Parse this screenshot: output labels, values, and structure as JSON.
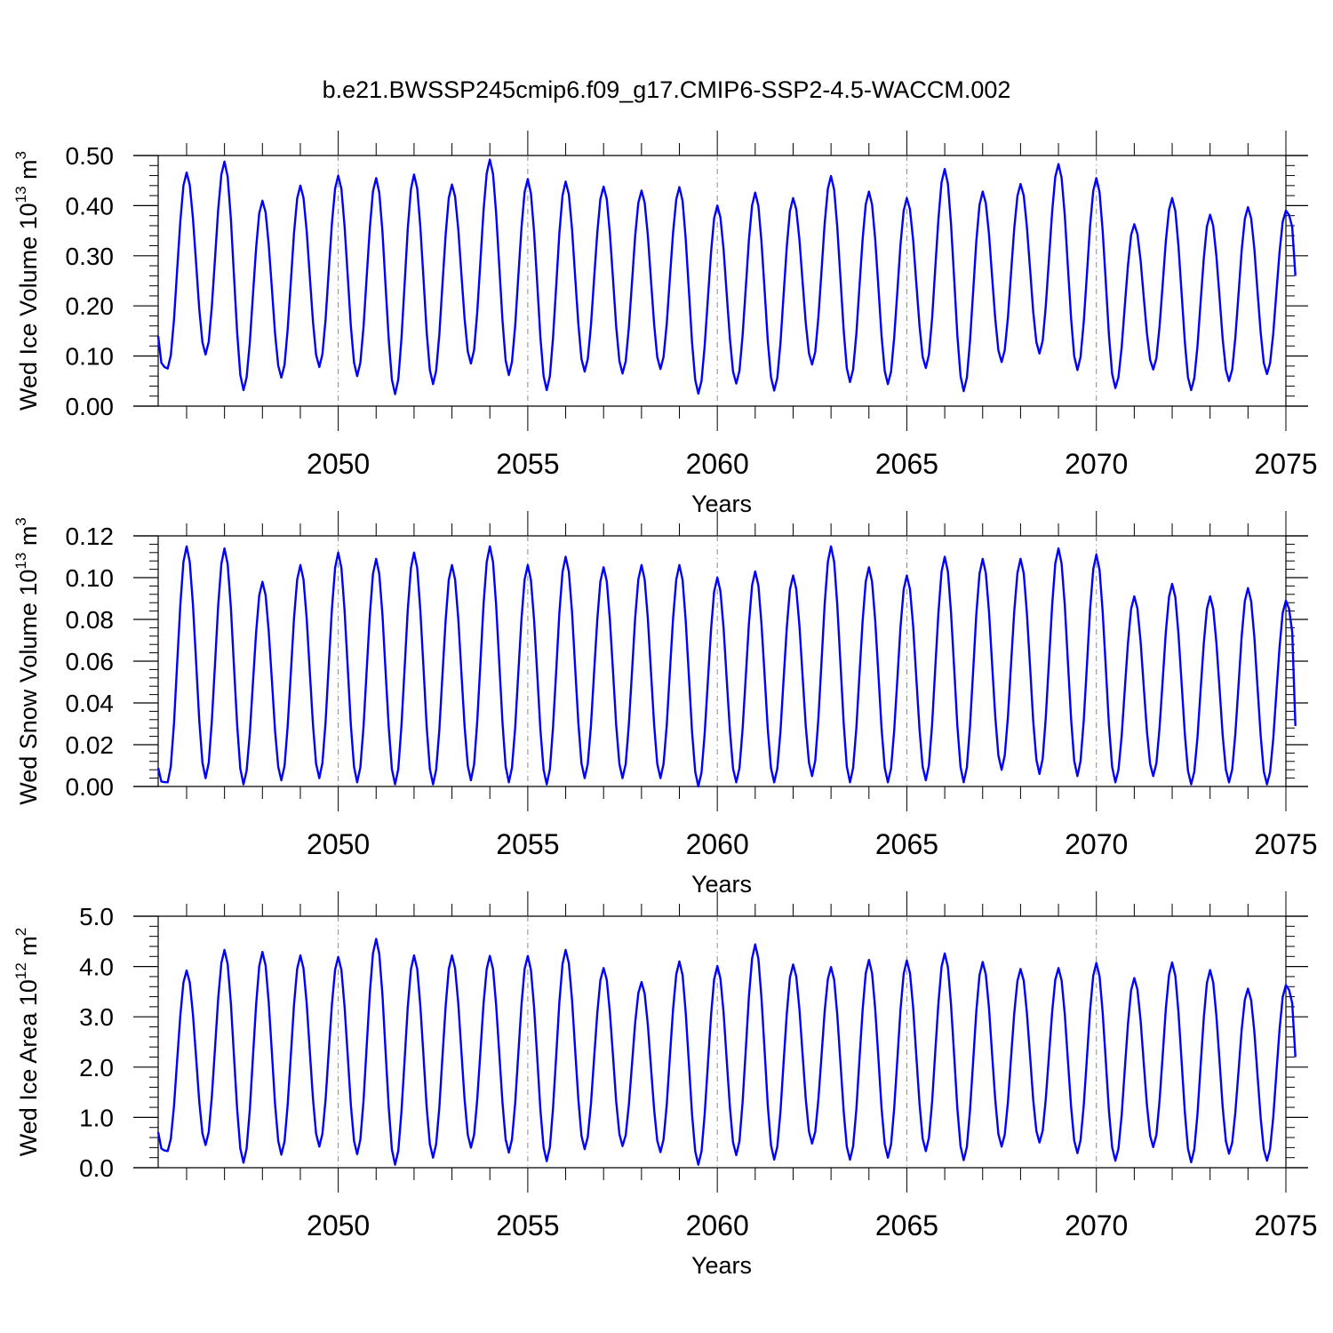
{
  "figure_title": "b.e21.BWSSP245cmip6.f09_g17.CMIP6-SSP2-4.5-WACCM.002",
  "line_color": "#0000ff",
  "chart_data": [
    {
      "type": "line",
      "ylabel_main": "Wed Ice Volume 10",
      "ylabel_exp": "13",
      "ylabel_unit": "m",
      "ylabel_unit_exp": "3",
      "xlabel": "Years",
      "xlim": [
        2045.0,
        2075.0
      ],
      "ylim": [
        0.0,
        0.5
      ],
      "xticks": [
        2050,
        2055,
        2060,
        2065,
        2070,
        2075
      ],
      "yticks": [
        0.0,
        0.1,
        0.2,
        0.3,
        0.4,
        0.5
      ],
      "ytick_labels": [
        "0.00",
        "0.10",
        "0.20",
        "0.30",
        "0.40",
        "0.50"
      ],
      "start_x": 2045.0,
      "peak_month": 9,
      "trough_month": 3,
      "minima": [
        0.075,
        0.103,
        0.032,
        0.057,
        0.078,
        0.06,
        0.024,
        0.044,
        0.085,
        0.062,
        0.032,
        0.069,
        0.065,
        0.074,
        0.025,
        0.045,
        0.031,
        0.083,
        0.048,
        0.044,
        0.076,
        0.03,
        0.088,
        0.105,
        0.072,
        0.036,
        0.073,
        0.032,
        0.05,
        0.064
      ],
      "maxima": [
        0.466,
        0.488,
        0.41,
        0.44,
        0.46,
        0.455,
        0.462,
        0.442,
        0.492,
        0.453,
        0.448,
        0.438,
        0.43,
        0.437,
        0.4,
        0.426,
        0.415,
        0.459,
        0.428,
        0.415,
        0.473,
        0.428,
        0.443,
        0.483,
        0.455,
        0.363,
        0.415,
        0.382,
        0.397,
        0.39
      ],
      "end_value": 0.26
    },
    {
      "type": "line",
      "ylabel_main": "Wed Snow Volume 10",
      "ylabel_exp": "13",
      "ylabel_unit": "m",
      "ylabel_unit_exp": "3",
      "xlabel": "Years",
      "xlim": [
        2045.0,
        2075.0
      ],
      "ylim": [
        0.0,
        0.12
      ],
      "xticks": [
        2050,
        2055,
        2060,
        2065,
        2070,
        2075
      ],
      "yticks": [
        0.0,
        0.02,
        0.04,
        0.06,
        0.08,
        0.1,
        0.12
      ],
      "ytick_labels": [
        "0.00",
        "0.02",
        "0.04",
        "0.06",
        "0.08",
        "0.10",
        "0.12"
      ],
      "start_x": 2045.0,
      "peak_month": 9,
      "trough_month": 3,
      "minima": [
        0.002,
        0.004,
        0.001,
        0.003,
        0.004,
        0.002,
        0.001,
        0.001,
        0.003,
        0.002,
        0.001,
        0.004,
        0.004,
        0.004,
        0.0,
        0.002,
        0.002,
        0.005,
        0.002,
        0.002,
        0.003,
        0.002,
        0.008,
        0.006,
        0.005,
        0.002,
        0.005,
        0.001,
        0.002,
        0.001
      ],
      "maxima": [
        0.115,
        0.114,
        0.098,
        0.106,
        0.112,
        0.109,
        0.112,
        0.106,
        0.115,
        0.106,
        0.11,
        0.105,
        0.106,
        0.106,
        0.1,
        0.103,
        0.101,
        0.115,
        0.105,
        0.101,
        0.11,
        0.109,
        0.109,
        0.114,
        0.111,
        0.091,
        0.097,
        0.091,
        0.095,
        0.089
      ],
      "end_value": 0.029
    },
    {
      "type": "line",
      "ylabel_main": "Wed Ice Area 10",
      "ylabel_exp": "12",
      "ylabel_unit": "m",
      "ylabel_unit_exp": "2",
      "xlabel": "Years",
      "xlim": [
        2045.0,
        2075.0
      ],
      "ylim": [
        0.0,
        5.0
      ],
      "xticks": [
        2050,
        2055,
        2060,
        2065,
        2070,
        2075
      ],
      "yticks": [
        0.0,
        1.0,
        2.0,
        3.0,
        4.0,
        5.0
      ],
      "ytick_labels": [
        "0.0",
        "1.0",
        "2.0",
        "3.0",
        "4.0",
        "5.0"
      ],
      "start_x": 2045.0,
      "peak_month": 9,
      "trough_month": 3,
      "minima": [
        0.33,
        0.45,
        0.1,
        0.26,
        0.42,
        0.27,
        0.06,
        0.2,
        0.4,
        0.3,
        0.13,
        0.37,
        0.43,
        0.31,
        0.06,
        0.25,
        0.16,
        0.48,
        0.16,
        0.2,
        0.33,
        0.15,
        0.42,
        0.5,
        0.29,
        0.14,
        0.41,
        0.11,
        0.28,
        0.14
      ],
      "maxima": [
        3.92,
        4.33,
        4.29,
        4.22,
        4.19,
        4.55,
        4.22,
        4.22,
        4.21,
        4.21,
        4.33,
        3.97,
        3.69,
        4.1,
        4.01,
        4.44,
        4.04,
        3.99,
        4.13,
        4.12,
        4.26,
        4.09,
        3.95,
        3.97,
        4.07,
        3.77,
        4.08,
        3.93,
        3.56,
        3.63
      ],
      "end_value": 2.2
    }
  ]
}
